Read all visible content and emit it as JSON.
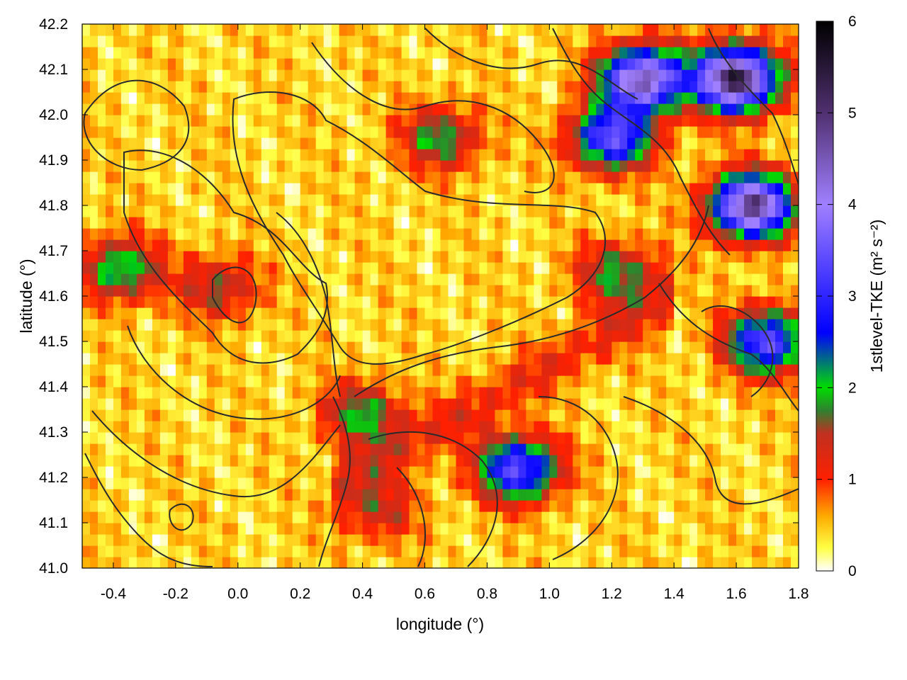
{
  "chart_data": {
    "type": "heatmap",
    "title": "",
    "xlabel": "longitude (°)",
    "ylabel": "latitude (°)",
    "xlim": [
      -0.5,
      1.8
    ],
    "ylim": [
      41.0,
      42.2
    ],
    "x_ticks": [
      "-0.4",
      "-0.2",
      "0.0",
      "0.2",
      "0.4",
      "0.6",
      "0.8",
      "1.0",
      "1.2",
      "1.4",
      "1.6",
      "1.8"
    ],
    "y_ticks": [
      "41.0",
      "41.1",
      "41.2",
      "41.3",
      "41.4",
      "41.5",
      "41.6",
      "41.7",
      "41.8",
      "41.9",
      "42.0",
      "42.1",
      "42.2"
    ],
    "colorbar": {
      "label": "1stlevel-TKE (m² s⁻²)",
      "range": [
        0,
        6
      ],
      "ticks": [
        "0",
        "1",
        "2",
        "3",
        "4",
        "5",
        "6"
      ],
      "colors": [
        {
          "value": 0.0,
          "color": "#ffffff"
        },
        {
          "value": 0.25,
          "color": "#ffff44"
        },
        {
          "value": 0.6,
          "color": "#ffaa00"
        },
        {
          "value": 1.0,
          "color": "#ff2000"
        },
        {
          "value": 1.5,
          "color": "#c03020"
        },
        {
          "value": 1.75,
          "color": "#308030"
        },
        {
          "value": 2.0,
          "color": "#00dd00"
        },
        {
          "value": 2.6,
          "color": "#0000ff"
        },
        {
          "value": 4.0,
          "color": "#a080ff"
        },
        {
          "value": 5.0,
          "color": "#503070"
        },
        {
          "value": 6.0,
          "color": "#000000"
        }
      ]
    },
    "hotspots": [
      {
        "lon": -0.38,
        "lat": 41.66,
        "tke": 1.8
      },
      {
        "lon": -0.06,
        "lat": 41.62,
        "tke": 1.2
      },
      {
        "lon": 1.22,
        "lat": 41.65,
        "tke": 1.5
      },
      {
        "lon": 0.45,
        "lat": 41.13,
        "tke": 1.0
      },
      {
        "lon": 0.9,
        "lat": 41.22,
        "tke": 3.0
      },
      {
        "lon": 1.3,
        "lat": 42.08,
        "tke": 4.2
      },
      {
        "lon": 1.6,
        "lat": 42.08,
        "tke": 5.0
      },
      {
        "lon": 1.65,
        "lat": 41.8,
        "tke": 4.5
      },
      {
        "lon": 1.7,
        "lat": 41.5,
        "tke": 3.0
      },
      {
        "lon": 1.2,
        "lat": 41.95,
        "tke": 3.0
      },
      {
        "lon": 0.65,
        "lat": 41.95,
        "tke": 1.5
      },
      {
        "lon": 0.4,
        "lat": 41.34,
        "tke": 1.5
      }
    ]
  }
}
